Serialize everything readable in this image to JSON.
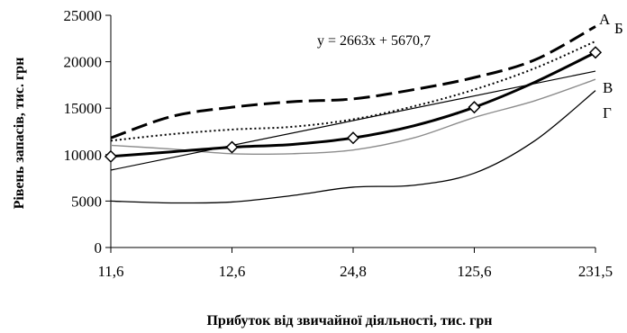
{
  "chart_data": {
    "type": "line",
    "categories": [
      "11,6",
      "12,6",
      "24,8",
      "125,6",
      "231,5"
    ],
    "xlabel": "Прибуток від звичайної діяльності, тис. грн",
    "ylabel": "Рівень запасів, тис. грн",
    "ylim": [
      0,
      25000
    ],
    "yticks": [
      0,
      5000,
      10000,
      15000,
      20000,
      25000
    ],
    "grid": false,
    "annotation": "y = 2663x + 5670,7",
    "series": [
      {
        "name": "А",
        "style": "dashed-thick",
        "color": "#000000",
        "x": [
          1,
          1.5,
          2,
          2.5,
          3,
          3.5,
          4,
          4.5,
          5
        ],
        "values": [
          11800,
          14100,
          15100,
          15700,
          16000,
          17000,
          18300,
          20200,
          23800
        ]
      },
      {
        "name": "Б",
        "style": "dotted",
        "color": "#000000",
        "x": [
          1,
          1.5,
          2,
          2.5,
          3,
          3.5,
          4,
          4.5,
          5
        ],
        "values": [
          11500,
          12200,
          12700,
          13000,
          13800,
          15200,
          17000,
          19300,
          22200
        ]
      },
      {
        "name": "В",
        "style": "gray",
        "color": "#8c8c8c",
        "x": [
          1,
          1.5,
          2,
          2.5,
          3,
          3.5,
          4,
          4.5,
          5
        ],
        "values": [
          11000,
          10600,
          10100,
          10100,
          10500,
          11800,
          14000,
          15800,
          18100
        ]
      },
      {
        "name": "Г",
        "style": "thin",
        "color": "#000000",
        "x": [
          1,
          1.5,
          2,
          2.5,
          3,
          3.5,
          4,
          4.5,
          5
        ],
        "values": [
          5000,
          4800,
          4900,
          5600,
          6500,
          6700,
          8000,
          11500,
          16900
        ]
      },
      {
        "name": "",
        "style": "bold-markers",
        "color": "#000000",
        "x": [
          1,
          1.5,
          2,
          2.5,
          3,
          3.5,
          4,
          4.5,
          5
        ],
        "values": [
          9800,
          10300,
          10800,
          11100,
          11800,
          13100,
          15100,
          17800,
          21000
        ],
        "markers_at": [
          1,
          2,
          3,
          4,
          5
        ]
      },
      {
        "name": "",
        "style": "trendline",
        "color": "#000000",
        "x": [
          1,
          5
        ],
        "values": [
          8333.7,
          18985.7
        ]
      }
    ]
  }
}
